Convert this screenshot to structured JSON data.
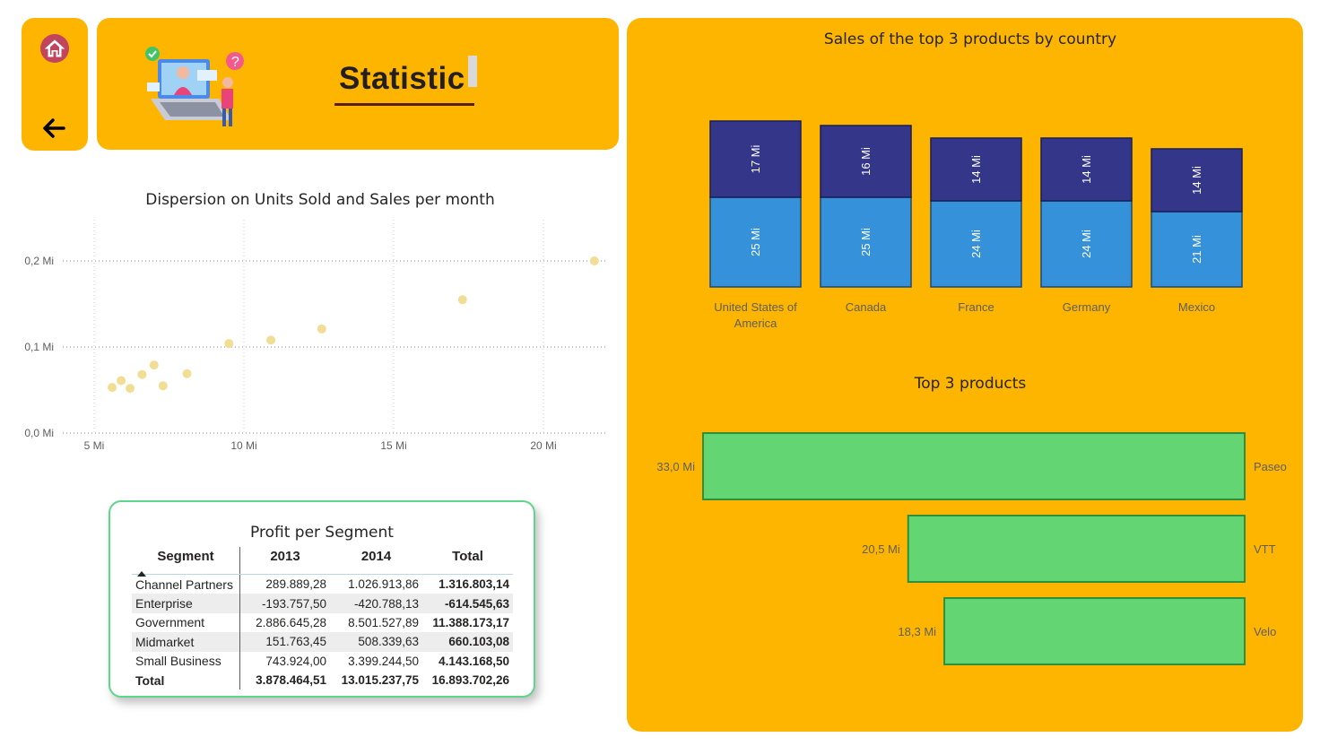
{
  "nav": {
    "home_icon": "home-icon",
    "back_icon": "arrow-left-icon"
  },
  "header": {
    "title": "Statistic",
    "illustration": "people-with-laptop-illustration"
  },
  "colors": {
    "panel": "#FDB500",
    "scatter_point": "#F2DD95",
    "bar_dark": "#343789",
    "bar_light": "#3592DA",
    "bar_green": "#63D673",
    "table_border": "#5FD58C"
  },
  "scatter": {
    "title": "Dispersion on Units Sold and Sales per month"
  },
  "stacked": {
    "title": "Sales of the top 3 products by country"
  },
  "products": {
    "title": "Top 3 products"
  },
  "table": {
    "title": "Profit per Segment",
    "headers": [
      "Segment",
      "2013",
      "2014",
      "Total"
    ],
    "rows": [
      [
        "Channel Partners",
        "289.889,28",
        "1.026.913,86",
        "1.316.803,14"
      ],
      [
        "Enterprise",
        "-193.757,50",
        "-420.788,13",
        "-614.545,63"
      ],
      [
        "Government",
        "2.886.645,28",
        "8.501.527,89",
        "11.388.173,17"
      ],
      [
        "Midmarket",
        "151.763,45",
        "508.339,63",
        "660.103,08"
      ],
      [
        "Small Business",
        "743.924,00",
        "3.399.244,50",
        "4.143.168,50"
      ]
    ],
    "total": [
      "Total",
      "3.878.464,51",
      "13.015.237,75",
      "16.893.702,26"
    ]
  },
  "chart_data": [
    {
      "type": "scatter",
      "title": "Dispersion on Units Sold and Sales per month",
      "xlim": [
        4,
        22
      ],
      "ylim": [
        0,
        0.2
      ],
      "x_ticks": [
        5,
        10,
        15,
        20
      ],
      "x_tick_labels": [
        "5 Mi",
        "10 Mi",
        "15 Mi",
        "20 Mi"
      ],
      "y_ticks": [
        0,
        0.1,
        0.2
      ],
      "y_tick_labels": [
        "0,0 Mi",
        "0,1 Mi",
        "0,2 Mi"
      ],
      "grid": true,
      "points": [
        {
          "x": 21.7,
          "y": 0.2
        },
        {
          "x": 17.3,
          "y": 0.155
        },
        {
          "x": 12.6,
          "y": 0.121
        },
        {
          "x": 10.9,
          "y": 0.108
        },
        {
          "x": 9.5,
          "y": 0.104
        },
        {
          "x": 8.1,
          "y": 0.069
        },
        {
          "x": 7.0,
          "y": 0.079
        },
        {
          "x": 6.6,
          "y": 0.068
        },
        {
          "x": 7.3,
          "y": 0.055
        },
        {
          "x": 5.9,
          "y": 0.061
        },
        {
          "x": 6.2,
          "y": 0.052
        },
        {
          "x": 5.6,
          "y": 0.053
        }
      ]
    },
    {
      "type": "bar",
      "stacked": true,
      "title": "Sales of the top 3 products by country",
      "categories": [
        "United States of America",
        "Canada",
        "France",
        "Germany",
        "Mexico"
      ],
      "series": [
        {
          "values": [
            25,
            25,
            24,
            24,
            21
          ],
          "labels": [
            "25 Mi",
            "25 Mi",
            "24 Mi",
            "24 Mi",
            "21 Mi"
          ]
        },
        {
          "values": [
            17,
            16,
            14,
            14,
            14
          ],
          "labels": [
            "17 Mi",
            "16 Mi",
            "14 Mi",
            "14 Mi",
            "14 Mi"
          ]
        }
      ]
    },
    {
      "type": "bar",
      "orientation": "horizontal",
      "title": "Top 3 products",
      "categories": [
        "Paseo",
        "VTT",
        "Velo"
      ],
      "values": [
        33.0,
        20.5,
        18.3
      ],
      "value_labels": [
        "33,0 Mi",
        "20,5 Mi",
        "18,3 Mi"
      ]
    }
  ]
}
